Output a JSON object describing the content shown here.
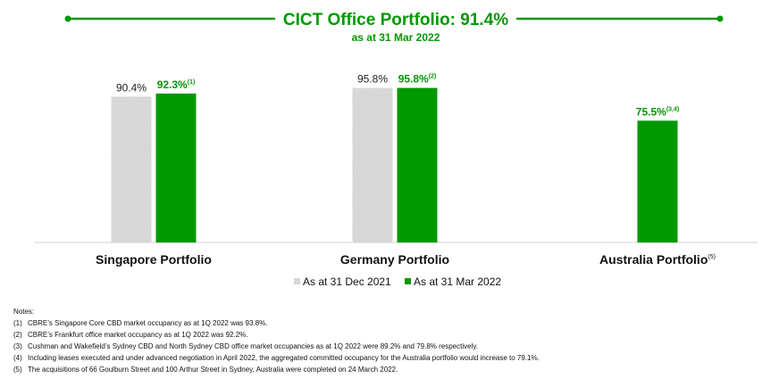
{
  "colors": {
    "accent": "#009900",
    "grey_bar": "#d9d9d9",
    "axis": "#d0d0d0"
  },
  "chart_data": {
    "type": "bar",
    "title": "CICT Office Portfolio: 91.4%",
    "subtitle": "as at 31 Mar 2022",
    "categories": [
      {
        "label": "Singapore Portfolio",
        "sup": ""
      },
      {
        "label": "Germany Portfolio",
        "sup": ""
      },
      {
        "label": "Australia Portfolio",
        "sup": "(5)"
      }
    ],
    "series": [
      {
        "name": "As at 31 Dec 2021",
        "color": "#d9d9d9",
        "values": [
          90.4,
          95.8,
          null
        ],
        "labels": [
          "90.4%",
          "95.8%",
          ""
        ],
        "label_sups": [
          "",
          "",
          ""
        ],
        "label_bold": false
      },
      {
        "name": "As at 31 Mar 2022",
        "color": "#009900",
        "values": [
          92.3,
          95.8,
          75.5
        ],
        "labels": [
          "92.3%",
          "95.8%",
          "75.5%"
        ],
        "label_sups": [
          "(1)",
          "(2)",
          "(3,4)"
        ],
        "label_bold": true
      }
    ],
    "ylim": [
      0,
      100
    ],
    "grid": false,
    "legend": "bottom-center",
    "xlabel": "",
    "ylabel": ""
  },
  "notes": {
    "heading": "Notes:",
    "items": [
      {
        "num": "(1)",
        "text": "CBRE’s Singapore Core CBD market occupancy as at 1Q 2022 was 93.8%."
      },
      {
        "num": "(2)",
        "text": "CBRE’s Frankfurt office market occupancy as at 1Q 2022 was 92.2%."
      },
      {
        "num": "(3)",
        "text": "Cushman and Wakefield’s Sydney CBD and North Sydney CBD office market occupancies as at 1Q 2022 were 89.2% and 79.8% respectively."
      },
      {
        "num": "(4)",
        "text": "Including leases executed and under advanced negotiation in April 2022, the aggregated committed occupancy for the Australia portfolio would increase to 79.1%."
      },
      {
        "num": "(5)",
        "text": "The acquisitions of 66 Goulburn Street and 100 Arthur Street in Sydney, Australia were completed on 24 March 2022."
      }
    ]
  }
}
